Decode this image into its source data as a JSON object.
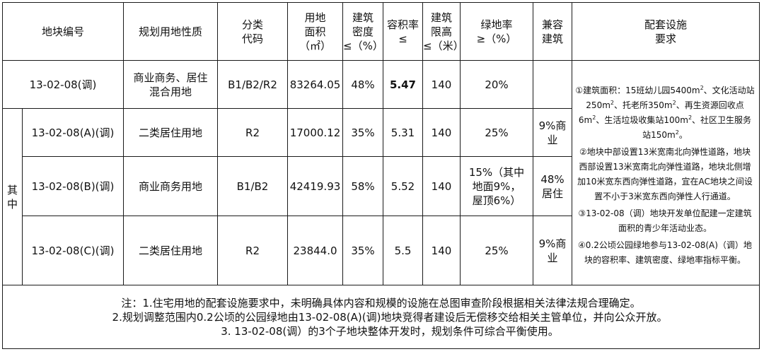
{
  "headers": {
    "parcel_code": "地块编号",
    "land_use": "规划用地性质",
    "category_code": "分类\n代码",
    "area": "用地\n面积\n（㎡）",
    "density": "建筑\n密度\n≤（%）",
    "far": "容积率\n≤",
    "height": "建筑\n限高\n≤（米）",
    "green": "绿地率\n≥（%）",
    "compatible": "兼容\n建筑",
    "facilities": "配套设施\n要求"
  },
  "rows": [
    {
      "parcel": "13-02-08(调)",
      "land_use": "商业商务、居住\n混合用地",
      "code": "B1/B2/R2",
      "area": "83264.05",
      "density": "48%",
      "far": "5.47",
      "height": "140",
      "green": "20%",
      "compatible": ""
    },
    {
      "parcel": "13-02-08(A)(调)",
      "land_use": "二类居住用地",
      "code": "R2",
      "area": "17000.12",
      "density": "35%",
      "far": "5.31",
      "height": "140",
      "green": "25%",
      "compatible": "9%商\n业"
    },
    {
      "parcel": "13-02-08(B)(调)",
      "land_use": "商业商务用地",
      "code": "B1/B2",
      "area": "42419.93",
      "density": "58%",
      "far": "5.52",
      "height": "140",
      "green": "15%（其中\n地面9%，\n屋顶6%）",
      "compatible": "48%\n居住"
    },
    {
      "parcel": "13-02-08(C)(调)",
      "land_use": "二类居住用地",
      "code": "R2",
      "area": "23844.0",
      "density": "35%",
      "far": "5.5",
      "height": "140",
      "green": "25%",
      "compatible": "9%商\n业"
    }
  ],
  "side_label": "其\n中",
  "facilities": {
    "item1_a": "①建筑面积：15班幼儿园5400m",
    "item1_b": "、文化活动站250m",
    "item1_c": "、托老所350m",
    "item1_d": "、再生资源回收点6m",
    "item1_e": "、生活垃圾收集站100m",
    "item1_f": "、社区卫生服务站150m",
    "item1_g": "。",
    "sup": "2",
    "item2": "②地块中部设置13米宽南北向弹性道路，地块西部设置13米宽南北向弹性道路，地块北侧增加10米宽东西向弹性道路，宜在AC地块之间设置不小于3米宽东西向弹性人行通道。",
    "item3": "③13-02-08（调）地块开发单位配建一定建筑面积的青少年活动业态。",
    "item4": "④0.2公顷公园绿地参与13-02-08(A)（调）地块的容积率、建筑密度、绿地率指标平衡。"
  },
  "notes": {
    "line1": "注：1.住宅用地的配套设施要求中，未明确具体内容和规模的设施在总图审查阶段根据相关法律法规合理确定。",
    "line2": "2.规划调整范围内0.2公顷的公园绿地由13-02-08(A)(调)地块竞得者建设后无偿移交给相关主管单位，并向公众开放。",
    "line3": "3. 13-02-08(调）的3个子地块整体开发时，规划条件可综合平衡使用。"
  }
}
